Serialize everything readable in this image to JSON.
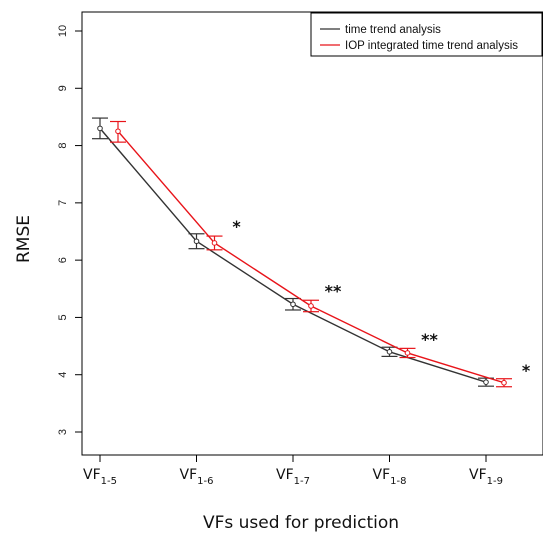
{
  "chart_data": {
    "type": "line",
    "xlabel": "VFs used for prediction",
    "ylabel": "RMSE",
    "ylim": [
      3,
      10
    ],
    "yticks": [
      3,
      4,
      5,
      6,
      7,
      8,
      9,
      10
    ],
    "categories": [
      {
        "main": "VF",
        "sub": "1-5"
      },
      {
        "main": "VF",
        "sub": "1-6"
      },
      {
        "main": "VF",
        "sub": "1-7"
      },
      {
        "main": "VF",
        "sub": "1-8"
      },
      {
        "main": "VF",
        "sub": "1-9"
      }
    ],
    "series": [
      {
        "name": "time trend analysis",
        "color": "#333333",
        "values": [
          8.3,
          6.33,
          5.23,
          4.4,
          3.87
        ],
        "lower": [
          8.12,
          6.2,
          5.13,
          4.32,
          3.8
        ],
        "upper": [
          8.48,
          6.46,
          5.33,
          4.48,
          3.94
        ]
      },
      {
        "name": "IOP integrated time trend analysis",
        "color": "#e8141a",
        "values": [
          8.25,
          6.3,
          5.2,
          4.38,
          3.86
        ],
        "lower": [
          8.06,
          6.18,
          5.1,
          4.3,
          3.79
        ],
        "upper": [
          8.42,
          6.42,
          5.3,
          4.46,
          3.93
        ]
      }
    ],
    "significance": [
      "",
      "*",
      "**",
      "**",
      "*"
    ],
    "legend_position": "top-right",
    "grid": false
  }
}
